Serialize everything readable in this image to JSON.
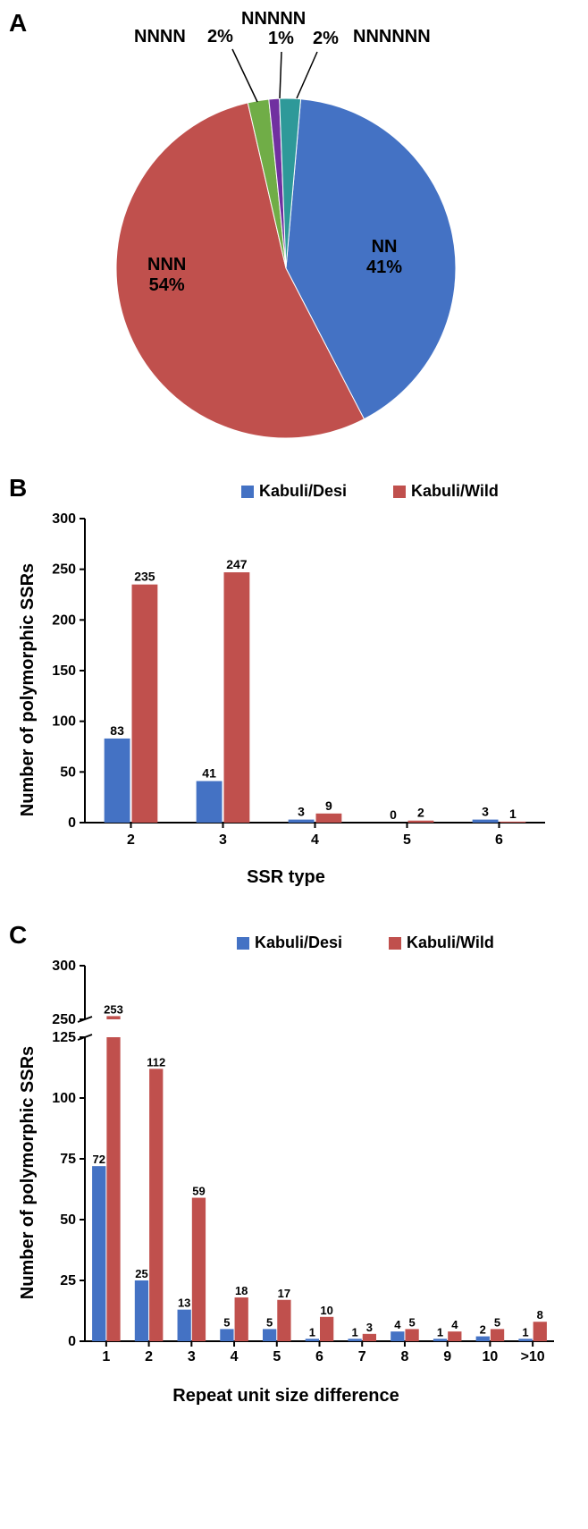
{
  "panelA": {
    "label": "A",
    "type": "pie",
    "slices": [
      {
        "name": "NN",
        "value": 41,
        "color": "#4472c4",
        "label": "NN",
        "pct": "41%"
      },
      {
        "name": "NNN",
        "value": 54,
        "color": "#c0504d",
        "label": "NNN",
        "pct": "54%"
      },
      {
        "name": "NNNN",
        "value": 2,
        "color": "#70ad47",
        "label": "NNNN",
        "pct": "2%"
      },
      {
        "name": "NNNNN",
        "value": 1,
        "color": "#7030a0",
        "label": "NNNNN",
        "pct": "1%"
      },
      {
        "name": "NNNNNN",
        "value": 2,
        "color": "#2e9999",
        "label": "NNNNNN",
        "pct": "2%"
      }
    ],
    "label_fontsize": 20,
    "label_fontweight": "bold",
    "stroke_color": "#ffffff",
    "stroke_width": 1
  },
  "panelB": {
    "label": "B",
    "type": "bar",
    "ylabel": "Number of polymorphic SSRs",
    "xlabel": "SSR type",
    "categories": [
      "2",
      "3",
      "4",
      "5",
      "6"
    ],
    "series": [
      {
        "name": "Kabuli/Desi",
        "color": "#4472c4",
        "values": [
          83,
          41,
          3,
          0,
          3
        ]
      },
      {
        "name": "Kabuli/Wild",
        "color": "#c0504d",
        "values": [
          235,
          247,
          9,
          2,
          1
        ]
      }
    ],
    "ylim": [
      0,
      300
    ],
    "ytick_step": 50,
    "bar_width": 0.35,
    "label_fontsize": 20,
    "tick_fontsize": 16,
    "value_fontsize": 14,
    "axis_color": "#000000",
    "background_color": "#ffffff"
  },
  "panelC": {
    "label": "C",
    "type": "bar_broken",
    "ylabel": "Number of polymorphic SSRs",
    "xlabel": "Repeat unit size difference",
    "categories": [
      "1",
      "2",
      "3",
      "4",
      "5",
      "6",
      "7",
      "8",
      "9",
      "10",
      ">10"
    ],
    "series": [
      {
        "name": "Kabuli/Desi",
        "color": "#4472c4",
        "values": [
          72,
          25,
          13,
          5,
          5,
          1,
          1,
          4,
          1,
          2,
          1
        ]
      },
      {
        "name": "Kabuli/Wild",
        "color": "#c0504d",
        "values": [
          253,
          112,
          59,
          18,
          17,
          10,
          3,
          5,
          4,
          5,
          8
        ]
      }
    ],
    "y_lower": {
      "lim": [
        0,
        125
      ],
      "ticks": [
        0,
        25,
        50,
        75,
        100,
        125
      ]
    },
    "y_upper": {
      "lim": [
        250,
        300
      ],
      "ticks": [
        250,
        300
      ]
    },
    "bar_width": 0.35,
    "label_fontsize": 20,
    "tick_fontsize": 16,
    "value_fontsize": 13,
    "axis_color": "#000000",
    "background_color": "#ffffff"
  }
}
